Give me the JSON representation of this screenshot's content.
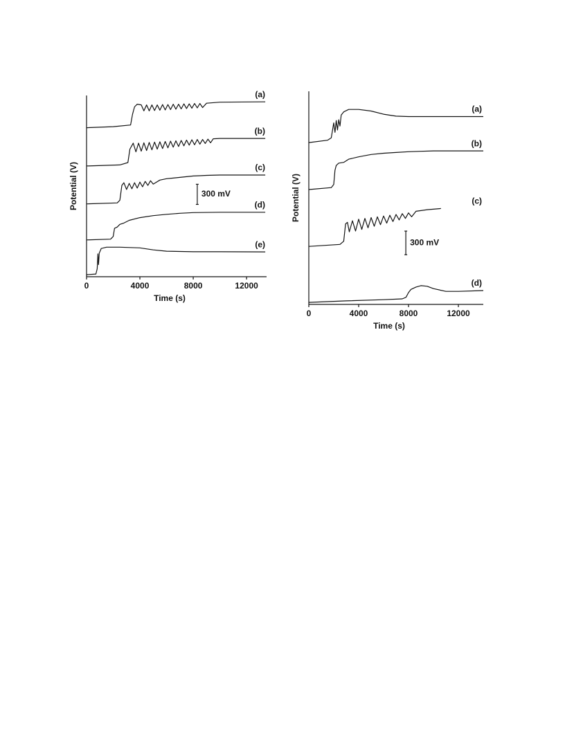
{
  "chart_data": [
    {
      "type": "line",
      "xlabel": "Time (s)",
      "ylabel": "Potential (V)",
      "color": "#111111",
      "xlim": [
        0,
        13500
      ],
      "xticks": [
        0,
        4000,
        8000,
        12000
      ],
      "ylim": [
        0,
        2700
      ],
      "annotation": {
        "label": "300 mV",
        "value": 300
      },
      "series": [
        {
          "name": "(a)",
          "x": [
            0,
            2000,
            3300,
            3450,
            3600,
            3800,
            4100,
            4300,
            4500,
            4700,
            4900,
            5100,
            5300,
            5500,
            5700,
            5900,
            6100,
            6300,
            6500,
            6700,
            6900,
            7100,
            7300,
            7500,
            7700,
            7900,
            8100,
            8300,
            8500,
            8700,
            9000,
            10000,
            13400
          ],
          "values": [
            2220,
            2235,
            2260,
            2420,
            2530,
            2570,
            2560,
            2470,
            2560,
            2470,
            2560,
            2475,
            2560,
            2480,
            2565,
            2485,
            2565,
            2490,
            2570,
            2495,
            2570,
            2500,
            2575,
            2505,
            2575,
            2510,
            2580,
            2515,
            2580,
            2520,
            2585,
            2600,
            2605
          ]
        },
        {
          "name": "(b)",
          "x": [
            0,
            2500,
            3100,
            3250,
            3500,
            3700,
            3900,
            4100,
            4300,
            4500,
            4700,
            4900,
            5100,
            5300,
            5500,
            5700,
            5900,
            6100,
            6300,
            6500,
            6700,
            6900,
            7100,
            7300,
            7500,
            7700,
            7900,
            8100,
            8300,
            8500,
            8700,
            8900,
            9100,
            9300,
            9500,
            10000,
            13400
          ],
          "values": [
            1650,
            1665,
            1700,
            1900,
            1990,
            1860,
            1990,
            1870,
            1995,
            1880,
            2000,
            1890,
            2005,
            1900,
            2010,
            1910,
            2015,
            1920,
            2020,
            1930,
            2025,
            1940,
            2030,
            1950,
            2035,
            1960,
            2040,
            1965,
            2045,
            1975,
            2045,
            1985,
            2050,
            1995,
            2055,
            2060,
            2060
          ]
        },
        {
          "name": "(c)",
          "x": [
            0,
            2300,
            2500,
            2650,
            2800,
            3000,
            3200,
            3400,
            3600,
            3800,
            4000,
            4200,
            4400,
            4600,
            4800,
            5000,
            5500,
            6000,
            6500,
            7000,
            7500,
            8000,
            8500,
            9000,
            10000,
            13400
          ],
          "values": [
            1085,
            1100,
            1140,
            1360,
            1400,
            1300,
            1390,
            1310,
            1400,
            1320,
            1410,
            1340,
            1420,
            1360,
            1430,
            1380,
            1440,
            1460,
            1470,
            1480,
            1490,
            1500,
            1505,
            1510,
            1515,
            1515
          ]
        },
        {
          "name": "(d)",
          "x": [
            0,
            1800,
            2000,
            2100,
            2300,
            2500,
            2800,
            3200,
            4000,
            5000,
            6000,
            7000,
            8000,
            10000,
            13400
          ],
          "values": [
            548,
            560,
            600,
            720,
            740,
            780,
            800,
            840,
            880,
            910,
            930,
            945,
            955,
            960,
            960
          ]
        },
        {
          "name": "(e)",
          "x": [
            0,
            700,
            800,
            850,
            900,
            950,
            1100,
            1500,
            2500,
            4000,
            5000,
            6000,
            8000,
            10000,
            13400
          ],
          "values": [
            30,
            40,
            120,
            340,
            180,
            350,
            420,
            440,
            440,
            430,
            400,
            380,
            372,
            372,
            370
          ]
        }
      ]
    },
    {
      "type": "line",
      "xlabel": "Time (s)",
      "ylabel": "Potential (V)",
      "color": "#111111",
      "xlim": [
        0,
        14000
      ],
      "xticks": [
        0,
        4000,
        8000,
        12000
      ],
      "ylim": [
        0,
        2700
      ],
      "annotation": {
        "label": "300 mV",
        "value": 300
      },
      "series": [
        {
          "name": "(a)",
          "x": [
            0,
            1500,
            1800,
            2000,
            2100,
            2200,
            2300,
            2400,
            2500,
            2600,
            2800,
            3200,
            4000,
            5000,
            6000,
            7000,
            8000,
            10000,
            14000
          ],
          "values": [
            2050,
            2080,
            2110,
            2300,
            2180,
            2330,
            2210,
            2340,
            2260,
            2400,
            2440,
            2470,
            2470,
            2450,
            2410,
            2385,
            2380,
            2380,
            2380
          ]
        },
        {
          "name": "(b)",
          "x": [
            0,
            1800,
            2000,
            2100,
            2200,
            2400,
            2800,
            3200,
            4000,
            5000,
            6000,
            7000,
            8000,
            9000,
            10000,
            14000
          ],
          "values": [
            1455,
            1480,
            1520,
            1700,
            1760,
            1790,
            1800,
            1840,
            1870,
            1900,
            1915,
            1925,
            1935,
            1940,
            1945,
            1945
          ]
        },
        {
          "name": "(c)",
          "x": [
            0,
            2500,
            2800,
            2950,
            3100,
            3250,
            3500,
            3750,
            4000,
            4250,
            4500,
            4750,
            5000,
            5250,
            5500,
            5750,
            6000,
            6250,
            6500,
            6750,
            7000,
            7250,
            7500,
            7750,
            8000,
            8250,
            8600,
            9500,
            10600
          ],
          "values": [
            735,
            760,
            800,
            1020,
            1040,
            920,
            1060,
            930,
            1080,
            950,
            1090,
            970,
            1100,
            990,
            1110,
            1010,
            1120,
            1030,
            1130,
            1050,
            1140,
            1070,
            1150,
            1090,
            1160,
            1110,
            1180,
            1200,
            1215
          ]
        },
        {
          "name": "(d)",
          "x": [
            0,
            3000,
            6000,
            7500,
            7800,
            8000,
            8200,
            8600,
            9000,
            9500,
            10000,
            11000,
            12000,
            14000
          ],
          "values": [
            25,
            45,
            60,
            70,
            90,
            150,
            190,
            220,
            238,
            230,
            200,
            165,
            165,
            175
          ]
        }
      ]
    }
  ]
}
